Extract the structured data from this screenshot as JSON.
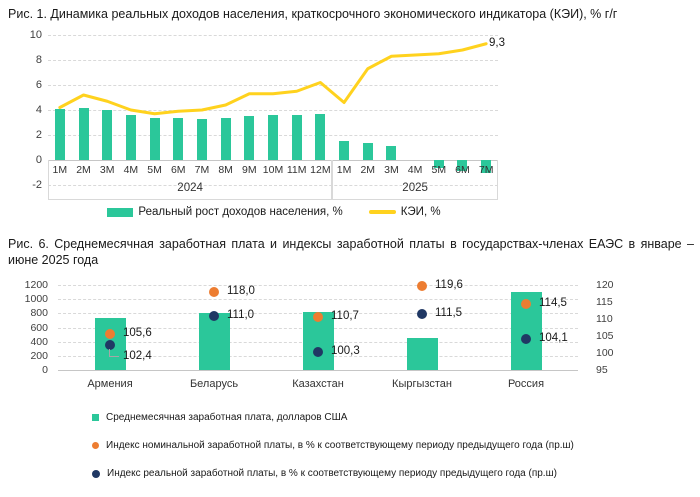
{
  "figure1": {
    "title": "Рис. 1. Динамика реальных доходов населения, краткосрочного экономического индикатора (КЭИ), % г/г",
    "kei_end_label": "9,3",
    "legend": [
      {
        "label": "Реальный рост доходов населения, %"
      },
      {
        "label": "КЭИ, %"
      }
    ]
  },
  "figure2": {
    "title": "Рис. 6. Среднемесячная заработная плата и индексы заработной платы в государствах-членах ЕАЭС в январе – июне 2025 года",
    "legend": [
      {
        "label": "Среднемесячная заработная плата, долларов США"
      },
      {
        "label": "Индекс номинальной заработной платы, в % к соответствующему периоду предыдущего года (пр.ш)"
      },
      {
        "label": "Индекс реальной заработной платы, в % к соответствующему периоду предыдущего года (пр.ш)"
      }
    ]
  },
  "colors": {
    "bar_green": "#2BC79A",
    "line_yellow": "#FFD21E",
    "nominal_orange": "#ED7D31",
    "real_navy": "#203864",
    "grid": "#d9d9d9"
  },
  "chart_data": [
    {
      "type": "bar+line",
      "title": "Динамика реальных доходов населения, краткосрочного экономического индикатора (КЭИ), % г/г",
      "categories": [
        "1M",
        "2M",
        "3M",
        "4M",
        "5M",
        "6M",
        "7M",
        "8M",
        "9M",
        "10M",
        "11M",
        "12M",
        "1M",
        "2M",
        "3M",
        "4M",
        "5M",
        "6M",
        "7M"
      ],
      "year_groups": [
        {
          "label": "2024",
          "count": 12
        },
        {
          "label": "2025",
          "count": 7
        }
      ],
      "ylim": [
        -2,
        10
      ],
      "yticks": [
        10,
        8,
        6,
        4,
        2,
        0,
        -2
      ],
      "grid": true,
      "series": [
        {
          "name": "Реальный рост доходов населения, %",
          "type": "bar",
          "values": [
            4.1,
            4.2,
            4.0,
            3.6,
            3.4,
            3.4,
            3.3,
            3.4,
            3.5,
            3.6,
            3.6,
            3.7,
            1.5,
            1.4,
            1.1,
            0,
            -0.6,
            -0.9,
            -1.0
          ]
        },
        {
          "name": "КЭИ, %",
          "type": "line",
          "values": [
            4.2,
            5.2,
            4.7,
            4.0,
            3.7,
            3.9,
            4.0,
            4.4,
            5.3,
            5.3,
            5.5,
            6.2,
            4.6,
            7.3,
            8.3,
            8.4,
            8.5,
            8.8,
            9.3
          ],
          "last_point_label": "9,3"
        }
      ],
      "legend_position": "bottom"
    },
    {
      "type": "bar+scatter-dual-axis",
      "title": "Среднемесячная заработная плата и индексы заработной платы в государствах-членах ЕАЭС в январе – июне 2025 года",
      "categories": [
        "Армения",
        "Беларусь",
        "Казахстан",
        "Кыргызстан",
        "Россия"
      ],
      "left_axis": {
        "ticks": [
          1200,
          1000,
          800,
          600,
          400,
          200,
          0
        ],
        "range": [
          0,
          1200
        ]
      },
      "right_axis": {
        "ticks": [
          120,
          115,
          110,
          105,
          100,
          95
        ],
        "range": [
          95,
          120
        ]
      },
      "grid": true,
      "series": [
        {
          "name": "Среднемесячная заработная плата, долларов США",
          "type": "bar",
          "axis": "left",
          "values": [
            740,
            810,
            820,
            455,
            1100
          ]
        },
        {
          "name": "Индекс номинальной заработной платы, в % к соответствующему периоду предыдущего года (пр.ш)",
          "type": "point",
          "axis": "right",
          "values": [
            105.6,
            118.0,
            110.7,
            119.6,
            114.5
          ],
          "labels": [
            "105,6",
            "118,0",
            "110,7",
            "119,6",
            "114,5"
          ]
        },
        {
          "name": "Индекс реальной заработной платы, в % к соответствующему периоду предыдущего года (пр.ш)",
          "type": "point",
          "axis": "right",
          "values": [
            102.4,
            111.0,
            100.3,
            111.5,
            104.1
          ],
          "labels": [
            "102,4",
            "111,0",
            "100,3",
            "111,5",
            "104,1"
          ],
          "leader_index": 0
        }
      ],
      "legend_position": "bottom"
    }
  ]
}
